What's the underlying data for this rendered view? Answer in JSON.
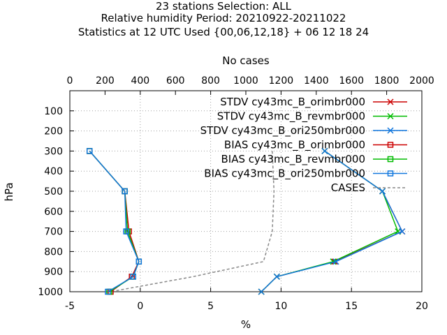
{
  "chart_data": {
    "type": "line",
    "title_lines": [
      "23 stations Selection: ALL",
      "Relative humidity  Period: 20210922-20211022",
      "Statistics at 12 UTC  Used {00,06,12,18} + 06 12 18 24"
    ],
    "xlabel": "%",
    "ylabel": "hPa",
    "x2label": "No cases",
    "xlim": [
      -5,
      20
    ],
    "x2lim": [
      0,
      2000
    ],
    "ylim": [
      1000,
      0
    ],
    "xticks": [
      -5,
      0,
      5,
      10,
      15,
      20
    ],
    "x2ticks": [
      0,
      200,
      400,
      600,
      800,
      1000,
      1200,
      1400,
      1600,
      1800,
      2000
    ],
    "yticks": [
      100,
      200,
      300,
      400,
      500,
      600,
      700,
      800,
      900,
      1000
    ],
    "grid": true,
    "legend_position": "top-right",
    "levels": [
      300,
      500,
      700,
      850,
      925,
      1000
    ],
    "series": [
      {
        "name": "STDV cy43mc_B_orimbr000",
        "color": "#cc0000",
        "marker": "x",
        "values": [
          13.1,
          17.2,
          18.6,
          13.8,
          9.7,
          8.6
        ]
      },
      {
        "name": "STDV cy43mc_B_revmbr000",
        "color": "#00bb00",
        "marker": "x",
        "values": [
          13.1,
          17.2,
          18.3,
          13.7,
          9.7,
          8.6
        ]
      },
      {
        "name": "STDV cy43mc_B_ori250mbr000",
        "color": "#1177dd",
        "marker": "x",
        "values": [
          13.1,
          17.2,
          18.6,
          13.9,
          9.7,
          8.6
        ]
      },
      {
        "name": "BIAS cy43mc_B_orimbr000",
        "color": "#cc0000",
        "marker": "square",
        "values": [
          -3.6,
          -1.1,
          -0.8,
          -0.1,
          -0.6,
          -2.1
        ]
      },
      {
        "name": "BIAS cy43mc_B_revmbr000",
        "color": "#00bb00",
        "marker": "square",
        "values": [
          -3.6,
          -1.1,
          -0.9,
          -0.1,
          -0.5,
          -2.2
        ]
      },
      {
        "name": "BIAS cy43mc_B_ori250mbr000",
        "color": "#1177dd",
        "marker": "square",
        "values": [
          -3.6,
          -1.1,
          -1.0,
          -0.1,
          -0.5,
          -2.3
        ]
      }
    ],
    "cases": {
      "name": "CASES",
      "color": "#888888",
      "levels": [
        300,
        500,
        700,
        850,
        925,
        1000
      ],
      "values": [
        1150,
        1160,
        1150,
        1100,
        700,
        230
      ]
    }
  }
}
